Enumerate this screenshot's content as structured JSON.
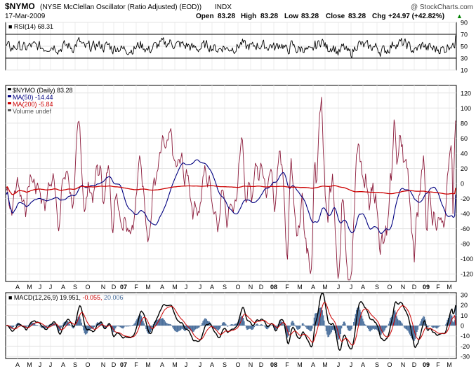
{
  "header": {
    "symbol": "$NYMO",
    "description": "(NYSE McClellan Oscillator (Ratio Adjusted) (EOD))",
    "exchange": "INDX",
    "date": "17-Mar-2009",
    "watermark": "@ StockCharts.com",
    "open_label": "Open",
    "open_value": "83.28",
    "high_label": "High",
    "high_value": "83.28",
    "low_label": "Low",
    "low_value": "83.28",
    "close_label": "Close",
    "close_value": "83.28",
    "chg_label": "Chg",
    "chg_value": "+24.97 (+42.82%)",
    "chg_arrow": "▲",
    "chg_color": "#008000"
  },
  "chart_data": [
    {
      "type": "line",
      "panel": "rsi",
      "legend": [
        {
          "text": "RSI(14) 68.31",
          "color": "#000000"
        }
      ],
      "y_ticks": [
        10,
        30,
        50,
        70,
        90
      ],
      "reference_lines": [
        30,
        70
      ],
      "ylim": [
        10,
        90
      ],
      "series": [
        {
          "name": "RSI(14)",
          "color": "#000000",
          "last": 68.31
        }
      ]
    },
    {
      "type": "line",
      "panel": "price",
      "legend": [
        {
          "text": "$NYMO (Daily) 83.28",
          "color": "#000000"
        },
        {
          "text": "MA(50) -14.44",
          "color": "#000080"
        },
        {
          "text": "MA(200) -5.84",
          "color": "#cc0000"
        },
        {
          "text": "Volume undef",
          "color": "#555555"
        }
      ],
      "y_ticks": [
        -120,
        -100,
        -80,
        -60,
        -40,
        -20,
        0,
        20,
        40,
        60,
        80,
        100,
        120
      ],
      "ylim": [
        -130,
        130
      ],
      "x_ticks": [
        "A",
        "M",
        "J",
        "J",
        "A",
        "S",
        "O",
        "N",
        "D",
        "07",
        "F",
        "M",
        "A",
        "M",
        "J",
        "J",
        "A",
        "S",
        "O",
        "N",
        "D",
        "08",
        "F",
        "M",
        "A",
        "M",
        "J",
        "J",
        "A",
        "S",
        "O",
        "N",
        "D",
        "09",
        "F",
        "M"
      ],
      "series": [
        {
          "name": "$NYMO (Daily)",
          "color": "#8b1a3a",
          "last": 83.28
        },
        {
          "name": "MA(50)",
          "color": "#000080",
          "last": -14.44
        },
        {
          "name": "MA(200)",
          "color": "#cc0000",
          "last": -5.84
        }
      ]
    },
    {
      "type": "line",
      "panel": "macd",
      "legend_label": "MACD(12,26,9)",
      "legend_macd": "19.951",
      "legend_signal": "-0.055",
      "legend_hist": "20.006",
      "legend_colors": {
        "label": "#000000",
        "macd": "#000000",
        "signal": "#cc0000",
        "hist": "#4a6f9c"
      },
      "y_ticks": [
        -30,
        -20,
        -10,
        0,
        10,
        20,
        30
      ],
      "ylim": [
        -32,
        32
      ],
      "x_ticks": [
        "A",
        "M",
        "J",
        "J",
        "A",
        "S",
        "O",
        "N",
        "D",
        "07",
        "F",
        "M",
        "A",
        "M",
        "J",
        "J",
        "A",
        "S",
        "O",
        "N",
        "D",
        "08",
        "F",
        "M",
        "A",
        "M",
        "J",
        "J",
        "A",
        "S",
        "O",
        "N",
        "D",
        "09",
        "F",
        "M"
      ],
      "series": [
        {
          "name": "MACD",
          "color": "#000000",
          "last": 19.951
        },
        {
          "name": "Signal",
          "color": "#cc0000",
          "last": -0.055
        },
        {
          "name": "Histogram",
          "color": "#4a6f9c",
          "last": 20.006
        }
      ]
    }
  ]
}
